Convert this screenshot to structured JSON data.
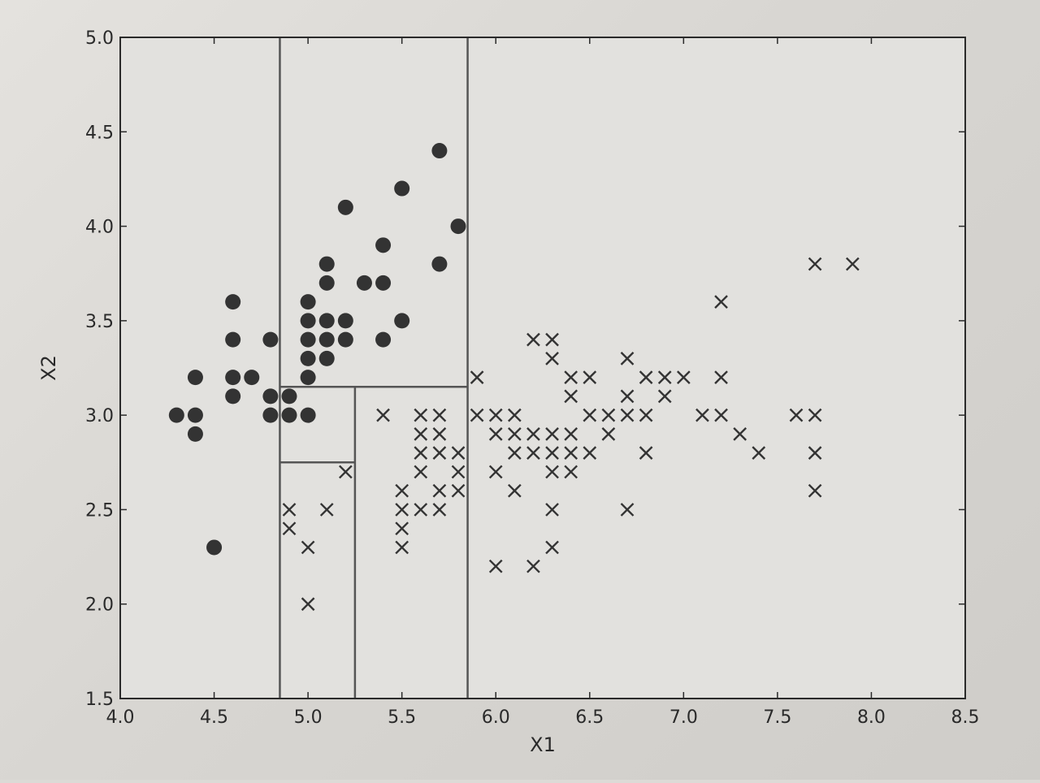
{
  "chart_data": {
    "type": "scatter",
    "title": "",
    "xlabel": "X1",
    "ylabel": "X2",
    "xlim": [
      4.0,
      8.5
    ],
    "ylim": [
      1.5,
      5.0
    ],
    "grid": false,
    "xticks": [
      "4.0",
      "4.5",
      "5.0",
      "5.5",
      "6.0",
      "6.5",
      "7.0",
      "7.5",
      "8.0",
      "8.5"
    ],
    "yticks": [
      "1.5",
      "2.0",
      "2.5",
      "3.0",
      "3.5",
      "4.0",
      "4.5",
      "5.0"
    ],
    "series": [
      {
        "name": "class-dot",
        "marker": "filled-circle",
        "color": "#333333",
        "points": [
          [
            4.3,
            3.0
          ],
          [
            4.4,
            3.2
          ],
          [
            4.4,
            3.0
          ],
          [
            4.4,
            2.9
          ],
          [
            4.5,
            2.3
          ],
          [
            4.6,
            3.6
          ],
          [
            4.6,
            3.4
          ],
          [
            4.6,
            3.2
          ],
          [
            4.6,
            3.1
          ],
          [
            4.7,
            3.2
          ],
          [
            4.8,
            3.4
          ],
          [
            4.8,
            3.1
          ],
          [
            4.8,
            3.0
          ],
          [
            4.9,
            3.1
          ],
          [
            4.9,
            3.0
          ],
          [
            5.0,
            3.6
          ],
          [
            5.0,
            3.5
          ],
          [
            5.0,
            3.4
          ],
          [
            5.0,
            3.3
          ],
          [
            5.0,
            3.2
          ],
          [
            5.0,
            3.0
          ],
          [
            5.1,
            3.8
          ],
          [
            5.1,
            3.7
          ],
          [
            5.1,
            3.5
          ],
          [
            5.1,
            3.4
          ],
          [
            5.1,
            3.3
          ],
          [
            5.2,
            4.1
          ],
          [
            5.2,
            3.5
          ],
          [
            5.2,
            3.4
          ],
          [
            5.3,
            3.7
          ],
          [
            5.4,
            3.9
          ],
          [
            5.4,
            3.7
          ],
          [
            5.4,
            3.4
          ],
          [
            5.5,
            4.2
          ],
          [
            5.5,
            3.5
          ],
          [
            5.7,
            4.4
          ],
          [
            5.7,
            3.8
          ],
          [
            5.8,
            4.0
          ]
        ]
      },
      {
        "name": "class-cross",
        "marker": "x",
        "color": "#333333",
        "points": [
          [
            4.9,
            2.5
          ],
          [
            4.9,
            2.4
          ],
          [
            5.0,
            2.3
          ],
          [
            5.0,
            2.0
          ],
          [
            5.1,
            2.5
          ],
          [
            5.2,
            2.7
          ],
          [
            5.4,
            3.0
          ],
          [
            5.5,
            2.6
          ],
          [
            5.5,
            2.5
          ],
          [
            5.5,
            2.4
          ],
          [
            5.5,
            2.3
          ],
          [
            5.6,
            3.0
          ],
          [
            5.6,
            2.9
          ],
          [
            5.6,
            2.8
          ],
          [
            5.6,
            2.7
          ],
          [
            5.6,
            2.5
          ],
          [
            5.7,
            3.0
          ],
          [
            5.7,
            2.9
          ],
          [
            5.7,
            2.8
          ],
          [
            5.7,
            2.6
          ],
          [
            5.7,
            2.5
          ],
          [
            5.8,
            2.8
          ],
          [
            5.8,
            2.7
          ],
          [
            5.8,
            2.6
          ],
          [
            5.9,
            3.2
          ],
          [
            5.9,
            3.0
          ],
          [
            6.0,
            3.0
          ],
          [
            6.0,
            2.9
          ],
          [
            6.0,
            2.7
          ],
          [
            6.0,
            2.2
          ],
          [
            6.1,
            3.0
          ],
          [
            6.1,
            2.9
          ],
          [
            6.1,
            2.8
          ],
          [
            6.1,
            2.6
          ],
          [
            6.2,
            3.4
          ],
          [
            6.2,
            2.9
          ],
          [
            6.2,
            2.8
          ],
          [
            6.2,
            2.2
          ],
          [
            6.3,
            3.4
          ],
          [
            6.3,
            3.3
          ],
          [
            6.3,
            2.9
          ],
          [
            6.3,
            2.8
          ],
          [
            6.3,
            2.7
          ],
          [
            6.3,
            2.5
          ],
          [
            6.3,
            2.3
          ],
          [
            6.4,
            3.2
          ],
          [
            6.4,
            3.1
          ],
          [
            6.4,
            2.9
          ],
          [
            6.4,
            2.8
          ],
          [
            6.4,
            2.7
          ],
          [
            6.5,
            3.2
          ],
          [
            6.5,
            3.0
          ],
          [
            6.5,
            2.8
          ],
          [
            6.6,
            3.0
          ],
          [
            6.6,
            2.9
          ],
          [
            6.7,
            3.3
          ],
          [
            6.7,
            3.1
          ],
          [
            6.7,
            3.0
          ],
          [
            6.7,
            2.5
          ],
          [
            6.8,
            3.2
          ],
          [
            6.8,
            3.0
          ],
          [
            6.8,
            2.8
          ],
          [
            6.9,
            3.2
          ],
          [
            6.9,
            3.1
          ],
          [
            7.0,
            3.2
          ],
          [
            7.1,
            3.0
          ],
          [
            7.2,
            3.6
          ],
          [
            7.2,
            3.2
          ],
          [
            7.2,
            3.0
          ],
          [
            7.3,
            2.9
          ],
          [
            7.4,
            2.8
          ],
          [
            7.6,
            3.0
          ],
          [
            7.7,
            3.8
          ],
          [
            7.7,
            3.0
          ],
          [
            7.7,
            2.8
          ],
          [
            7.7,
            2.6
          ],
          [
            7.9,
            3.8
          ]
        ]
      }
    ],
    "decision_boundaries": [
      {
        "name": "split-x1-5.85",
        "orientation": "vertical",
        "at": 5.85,
        "from": 1.5,
        "to": 5.0
      },
      {
        "name": "split-x1-4.85",
        "orientation": "vertical",
        "at": 4.85,
        "from": 1.5,
        "to": 5.0
      },
      {
        "name": "split-x2-3.15",
        "orientation": "horizontal",
        "at": 3.15,
        "from": 4.85,
        "to": 5.85
      },
      {
        "name": "split-x1-5.25",
        "orientation": "vertical",
        "at": 5.25,
        "from": 1.5,
        "to": 3.15
      },
      {
        "name": "split-x2-2.75",
        "orientation": "horizontal",
        "at": 2.75,
        "from": 4.85,
        "to": 5.25
      }
    ],
    "style": {
      "frame_color": "#2a2a2a",
      "boundary_color": "#555555",
      "marker_color": "#333333",
      "text_color": "#2a2a2a"
    }
  }
}
